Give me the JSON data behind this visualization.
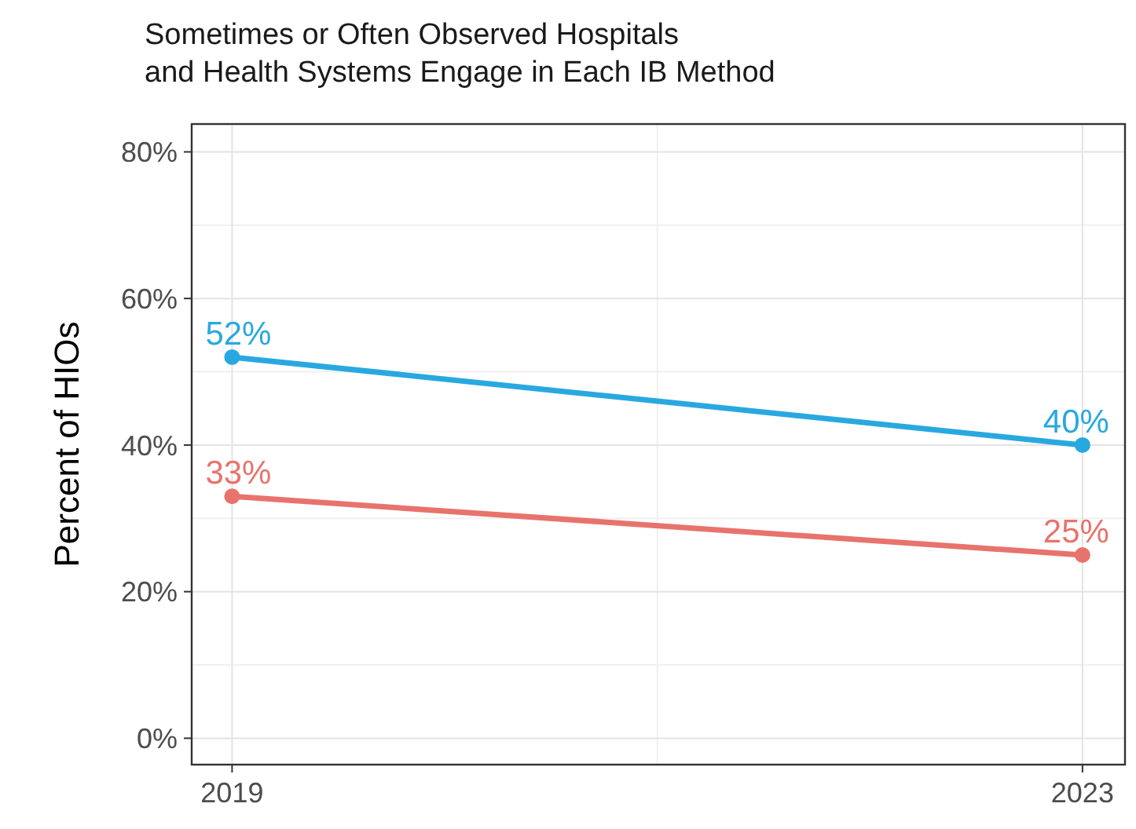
{
  "chart_data": {
    "type": "line",
    "title": "Sometimes or Often Observed Hospitals\nand Health Systems Engage in Each IB Method",
    "ylabel": "Percent of HIOs",
    "x": [
      2019,
      2023
    ],
    "series": [
      {
        "color": "#29a8e0",
        "values": [
          52,
          40
        ],
        "value_labels": [
          "52%",
          "40%"
        ]
      },
      {
        "color": "#e8736c",
        "values": [
          33,
          25
        ],
        "value_labels": [
          "33%",
          "25%"
        ]
      }
    ],
    "xlim": [
      2018.81,
      2023.2
    ],
    "xticks": [
      2019,
      2023
    ],
    "ylim": [
      -3.6,
      83.8
    ],
    "yticks": [
      {
        "value": 0,
        "label": "0%"
      },
      {
        "value": 20,
        "label": "20%"
      },
      {
        "value": 40,
        "label": "40%"
      },
      {
        "value": 60,
        "label": "60%"
      },
      {
        "value": 80,
        "label": "80%"
      }
    ],
    "grid": true,
    "marker": "circle",
    "line_style": "solid"
  }
}
